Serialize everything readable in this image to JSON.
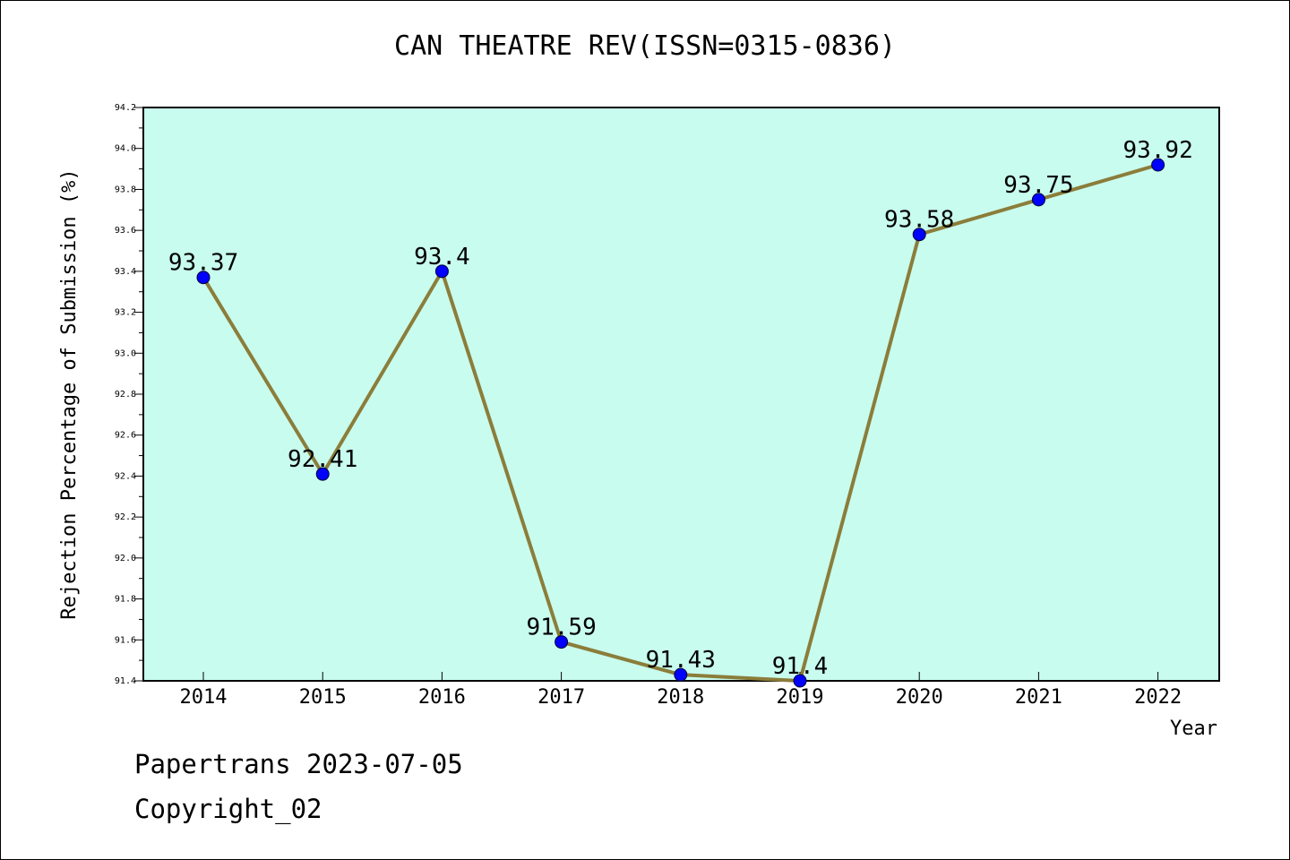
{
  "chart_data": {
    "type": "line",
    "title": "CAN THEATRE REV(ISSN=0315-0836)",
    "xlabel": "Year",
    "ylabel": "Rejection Percentage of Submission (%)",
    "categories": [
      "2014",
      "2015",
      "2016",
      "2017",
      "2018",
      "2019",
      "2020",
      "2021",
      "2022"
    ],
    "series": [
      {
        "values": [
          93.37,
          92.41,
          93.4,
          91.59,
          91.43,
          91.4,
          93.58,
          93.75,
          93.92
        ],
        "data_labels": [
          "93.37",
          "92.41",
          "93.4",
          "91.59",
          "91.43",
          "91.4",
          "93.58",
          "93.75",
          "93.92"
        ]
      }
    ],
    "ylim": [
      91.4,
      94.2
    ],
    "yticks": [
      "91.4",
      "91.6",
      "91.8",
      "92.0",
      "92.2",
      "92.4",
      "92.6",
      "92.8",
      "93.0",
      "93.2",
      "93.4",
      "93.6",
      "93.8",
      "94.0",
      "94.2"
    ],
    "grid": false,
    "colors": {
      "plot_background": "#c8fcee",
      "line": "#8b7d3a",
      "marker": "#0000ff"
    }
  },
  "footer": {
    "line1": "Papertrans 2023-07-05",
    "line2": "Copyright_02"
  }
}
